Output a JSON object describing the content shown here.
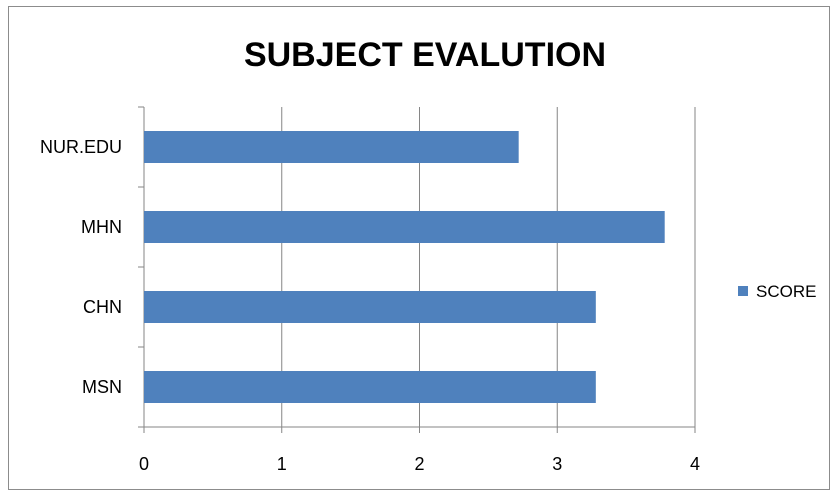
{
  "chart_data": {
    "type": "bar",
    "orientation": "horizontal",
    "title": "SUBJECT EVALUTION",
    "categories": [
      "MSN",
      "CHN",
      "MHN",
      "NUR.EDU"
    ],
    "series": [
      {
        "name": "SCORE",
        "values": [
          3.28,
          3.28,
          3.78,
          2.72
        ],
        "color": "#4f81bd"
      }
    ],
    "xlim": [
      0,
      4
    ],
    "x_ticks": [
      "0",
      "1",
      "2",
      "3",
      "4"
    ],
    "grid": "vertical major gridlines",
    "legend_position": "right"
  }
}
